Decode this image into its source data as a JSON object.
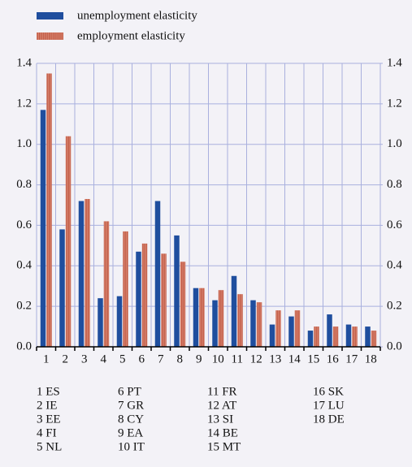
{
  "chart_data": {
    "type": "bar",
    "categories": [
      "1",
      "2",
      "3",
      "4",
      "5",
      "6",
      "7",
      "8",
      "9",
      "10",
      "11",
      "12",
      "13",
      "14",
      "15",
      "16",
      "17",
      "18"
    ],
    "series": [
      {
        "name": "unemployment elasticity",
        "color": "#1f4e9e",
        "values": [
          1.17,
          0.58,
          0.72,
          0.24,
          0.25,
          0.47,
          0.72,
          0.55,
          0.29,
          0.23,
          0.35,
          0.23,
          0.11,
          0.15,
          0.08,
          0.16,
          0.11,
          0.1
        ]
      },
      {
        "name": "employment elasticity",
        "color": "#d98672",
        "values": [
          1.35,
          1.04,
          0.73,
          0.62,
          0.57,
          0.51,
          0.46,
          0.42,
          0.29,
          0.28,
          0.26,
          0.22,
          0.18,
          0.18,
          0.1,
          0.1,
          0.1,
          0.08
        ]
      }
    ],
    "ylim": [
      0,
      1.4
    ],
    "yticks": [
      {
        "value": 0,
        "label": "0.0"
      },
      0.2,
      0.4,
      0.6,
      0.8,
      {
        "value": 1,
        "label": "1.0"
      },
      1.2,
      1.4
    ],
    "y2lim": [
      0,
      1.4
    ],
    "y2ticks": [
      {
        "value": 0,
        "label": "0.0"
      },
      0.2,
      0.4,
      0.6,
      0.8,
      {
        "value": 1,
        "label": "1.0"
      },
      1.2,
      1.4
    ],
    "grid": true,
    "category_key": [
      "1 ES",
      "2 IE",
      "3 EE",
      "4 FI",
      "5 NL",
      "6 PT",
      "7 GR",
      "8 CY",
      "9 EA",
      "10 IT",
      "11 FR",
      "12 AT",
      "13 SI",
      "14 BE",
      "15 MT",
      "16 SK",
      "17 LU",
      "18 DE"
    ]
  }
}
